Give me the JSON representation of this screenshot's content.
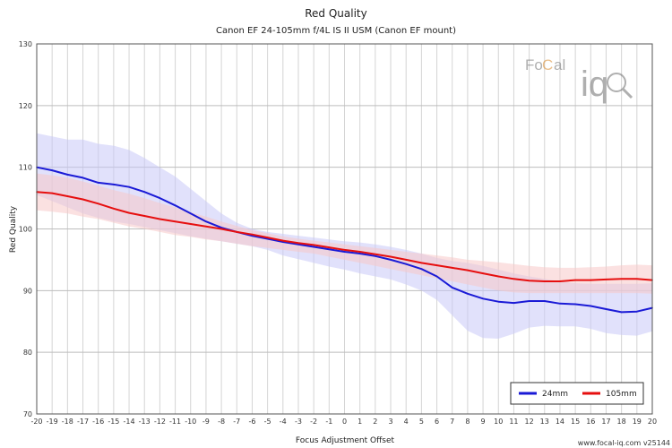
{
  "chart_data": {
    "type": "line",
    "title": "Red Quality",
    "subtitle": "Canon EF 24-105mm f/4L IS II USM (Canon EF mount)",
    "xlabel": "Focus Adjustment Offset",
    "ylabel": "Red Quality",
    "xlim": [
      -20,
      20
    ],
    "ylim": [
      70,
      130
    ],
    "grid": true,
    "legend_position": "bottom-right",
    "x": [
      -20,
      -19,
      -18,
      -17,
      -16,
      -15,
      -14,
      -13,
      -12,
      -11,
      -10,
      -9,
      -8,
      -7,
      -6,
      -5,
      -4,
      -3,
      -2,
      -1,
      0,
      1,
      2,
      3,
      4,
      5,
      6,
      7,
      8,
      9,
      10,
      11,
      12,
      13,
      14,
      15,
      16,
      17,
      18,
      19,
      20
    ],
    "series": [
      {
        "name": "24mm",
        "color": "#1a1ad6",
        "band_color": "#c8c8f8",
        "values": [
          110.0,
          109.5,
          108.8,
          108.3,
          107.5,
          107.2,
          106.8,
          106.0,
          105.0,
          103.8,
          102.5,
          101.2,
          100.2,
          99.5,
          98.9,
          98.4,
          97.9,
          97.5,
          97.1,
          96.7,
          96.3,
          96.0,
          95.6,
          95.0,
          94.3,
          93.5,
          92.3,
          90.5,
          89.5,
          88.7,
          88.2,
          88.0,
          88.3,
          88.3,
          87.9,
          87.8,
          87.5,
          87.0,
          86.5,
          86.6,
          87.2
        ],
        "upper": [
          115.5,
          115.0,
          114.5,
          114.5,
          113.8,
          113.5,
          112.8,
          111.5,
          110.0,
          108.5,
          106.5,
          104.5,
          102.5,
          101.0,
          100.0,
          99.5,
          99.2,
          98.9,
          98.6,
          98.3,
          98.0,
          97.8,
          97.5,
          97.1,
          96.6,
          96.0,
          95.3,
          94.8,
          94.5,
          94.0,
          93.4,
          92.8,
          92.3,
          91.9,
          91.5,
          91.2,
          91.1,
          91.1,
          91.1,
          91.1,
          91.2
        ],
        "lower": [
          105.5,
          104.5,
          103.5,
          102.5,
          101.8,
          101.2,
          100.8,
          100.3,
          99.8,
          99.3,
          98.8,
          98.4,
          98.0,
          97.6,
          97.2,
          96.6,
          95.7,
          95.1,
          94.5,
          93.9,
          93.4,
          92.8,
          92.3,
          91.8,
          91.0,
          90.0,
          88.5,
          86.0,
          83.5,
          82.3,
          82.2,
          83.0,
          84.0,
          84.3,
          84.2,
          84.2,
          83.8,
          83.1,
          82.8,
          82.7,
          83.4
        ]
      },
      {
        "name": "105mm",
        "color": "#e60f0f",
        "band_color": "#f8c8c8",
        "values": [
          106.0,
          105.8,
          105.3,
          104.8,
          104.1,
          103.3,
          102.6,
          102.1,
          101.6,
          101.2,
          100.8,
          100.4,
          100.0,
          99.5,
          99.1,
          98.6,
          98.1,
          97.7,
          97.4,
          97.0,
          96.6,
          96.3,
          95.9,
          95.5,
          95.0,
          94.5,
          94.1,
          93.7,
          93.3,
          92.8,
          92.3,
          91.9,
          91.6,
          91.5,
          91.5,
          91.7,
          91.7,
          91.8,
          91.9,
          91.9,
          91.7
        ],
        "upper": [
          109.0,
          108.7,
          108.3,
          107.7,
          107.0,
          106.3,
          105.7,
          105.0,
          104.2,
          103.5,
          102.7,
          102.0,
          101.2,
          100.5,
          99.8,
          99.3,
          98.8,
          98.4,
          98.1,
          97.8,
          97.5,
          97.2,
          96.9,
          96.6,
          96.3,
          96.0,
          95.7,
          95.4,
          95.0,
          94.8,
          94.6,
          94.3,
          94.0,
          93.8,
          93.7,
          93.7,
          93.8,
          93.9,
          94.1,
          94.2,
          94.1
        ],
        "lower": [
          103.0,
          102.8,
          102.5,
          102.0,
          101.6,
          101.0,
          100.4,
          100.0,
          99.5,
          99.0,
          98.7,
          98.3,
          98.0,
          97.6,
          97.2,
          96.9,
          96.6,
          96.3,
          96.0,
          95.5,
          95.0,
          94.5,
          94.0,
          93.5,
          93.0,
          92.5,
          92.0,
          91.5,
          91.0,
          90.5,
          90.0,
          89.7,
          89.6,
          89.6,
          89.6,
          89.6,
          89.6,
          89.6,
          89.6,
          89.6,
          89.5
        ]
      }
    ]
  },
  "branding": {
    "logo_part1": "Fo",
    "logo_part2": "C",
    "logo_part3": "al",
    "logo_iq": "iq",
    "footer": "www.focal-iq.com  v25144"
  }
}
